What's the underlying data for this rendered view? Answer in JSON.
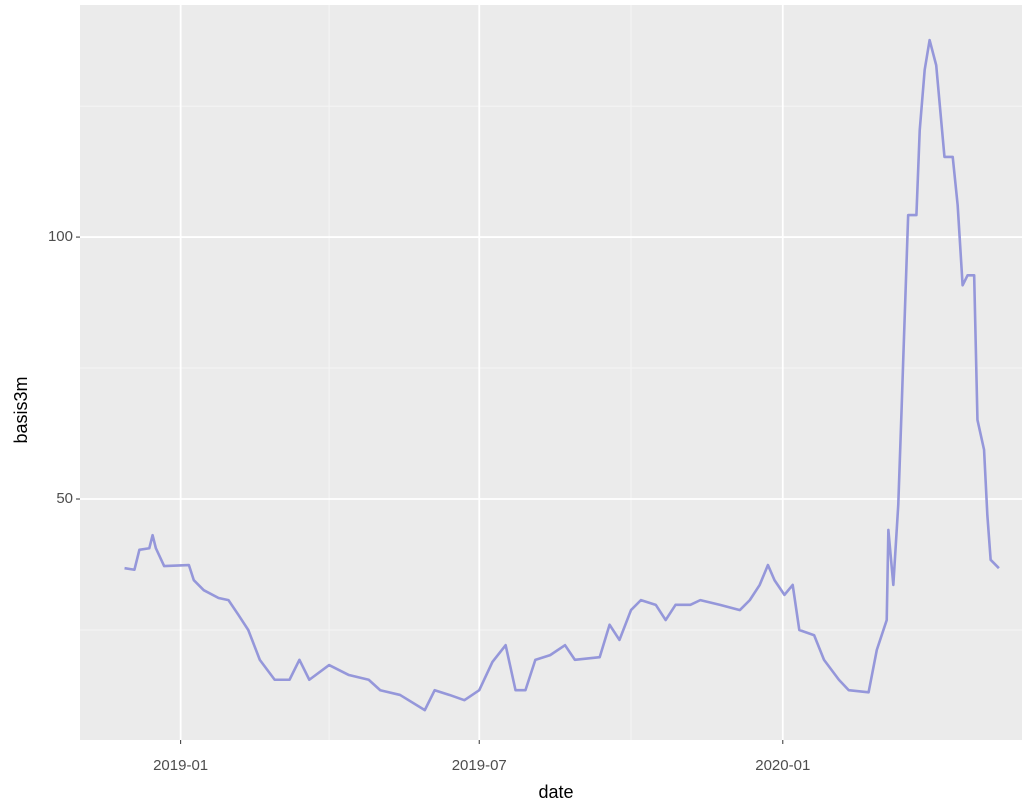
{
  "chart_data": {
    "type": "line",
    "x_label": "date",
    "y_label": "basis3m",
    "x": [
      "2018-11-28",
      "2018-12-04",
      "2018-12-07",
      "2018-12-13",
      "2018-12-15",
      "2018-12-17",
      "2018-12-22",
      "2019-01-06",
      "2019-01-09",
      "2019-01-15",
      "2019-01-24",
      "2019-01-30",
      "2019-02-05",
      "2019-02-11",
      "2019-02-18",
      "2019-02-27",
      "2019-03-08",
      "2019-03-14",
      "2019-03-20",
      "2019-04-01",
      "2019-04-13",
      "2019-04-25",
      "2019-05-02",
      "2019-05-14",
      "2019-05-29",
      "2019-06-04",
      "2019-06-13",
      "2019-06-22",
      "2019-07-01",
      "2019-07-09",
      "2019-07-17",
      "2019-07-23",
      "2019-07-29",
      "2019-08-04",
      "2019-08-13",
      "2019-08-22",
      "2019-08-28",
      "2019-09-12",
      "2019-09-18",
      "2019-09-24",
      "2019-10-01",
      "2019-10-07",
      "2019-10-16",
      "2019-10-22",
      "2019-10-28",
      "2019-11-06",
      "2019-11-12",
      "2019-11-24",
      "2019-12-06",
      "2019-12-12",
      "2019-12-18",
      "2019-12-23",
      "2019-12-27",
      "2020-01-02",
      "2020-01-07",
      "2020-01-11",
      "2020-01-20",
      "2020-01-26",
      "2020-02-04",
      "2020-02-10",
      "2020-02-22",
      "2020-02-27",
      "2020-03-04",
      "2020-03-05",
      "2020-03-08",
      "2020-03-11",
      "2020-03-13",
      "2020-03-14",
      "2020-03-17",
      "2020-03-22",
      "2020-03-24",
      "2020-03-27",
      "2020-03-30",
      "2020-04-03",
      "2020-04-08",
      "2020-04-13",
      "2020-04-16",
      "2020-04-19",
      "2020-04-22",
      "2020-04-26",
      "2020-04-28",
      "2020-05-02",
      "2020-05-04",
      "2020-05-06",
      "2020-05-11"
    ],
    "series": [
      {
        "name": "basis3m",
        "color": "#9597da",
        "values": [
          36.8,
          36.5,
          40.3,
          40.6,
          43.1,
          40.6,
          37.2,
          37.4,
          34.5,
          32.6,
          31.1,
          30.7,
          27.9,
          25.0,
          19.3,
          15.5,
          15.5,
          19.3,
          15.5,
          18.3,
          16.4,
          15.5,
          13.5,
          12.6,
          9.7,
          13.5,
          12.6,
          11.6,
          13.5,
          18.9,
          22.1,
          13.5,
          13.5,
          19.3,
          20.2,
          22.1,
          19.3,
          19.8,
          26.0,
          23.1,
          28.8,
          30.7,
          29.8,
          26.9,
          29.8,
          29.8,
          30.7,
          29.8,
          28.8,
          30.7,
          33.6,
          37.4,
          34.5,
          31.7,
          33.6,
          25.0,
          24.0,
          19.3,
          15.5,
          13.5,
          13.1,
          21.2,
          26.9,
          44.1,
          33.6,
          48.9,
          67.0,
          76.5,
          104.2,
          104.2,
          120.4,
          131.9,
          137.6,
          132.8,
          115.3,
          115.3,
          106.1,
          90.8,
          92.7,
          92.7,
          65.1,
          59.4,
          46.9,
          38.4,
          36.8
        ]
      }
    ],
    "xlim": [
      "2018-11-01",
      "2020-05-25"
    ],
    "xticks": [
      {
        "value": "2019-01-01",
        "label": "2019-01"
      },
      {
        "value": "2019-07-01",
        "label": "2019-07"
      },
      {
        "value": "2020-01-01",
        "label": "2020-01"
      }
    ],
    "xminor": [
      "2019-04-01",
      "2019-10-01"
    ],
    "ylim": [
      4,
      144.3
    ],
    "yticks": [
      50,
      100
    ],
    "yminor": [
      25,
      75,
      125
    ],
    "grid": true
  }
}
